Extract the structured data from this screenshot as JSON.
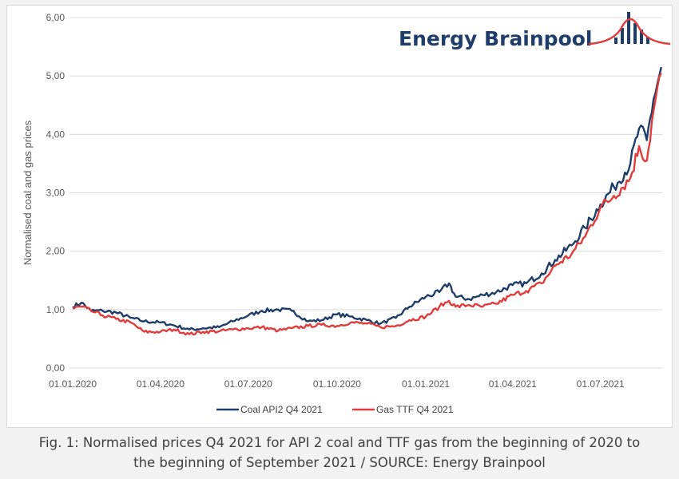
{
  "logo": {
    "text": "Energy Brainpool"
  },
  "caption": {
    "line1": "Fig. 1: Normalised prices Q4 2021 for API 2 coal and TTF gas from the beginning of 2020 to",
    "line2": "the beginning of September 2021 / SOURCE: Energy Brainpool"
  },
  "chart_data": {
    "type": "line",
    "title": "",
    "xlabel": "",
    "ylabel": "Normalised coal and gas prices",
    "ylim": [
      0,
      6
    ],
    "yticks": [
      "0,00",
      "1,00",
      "2,00",
      "3,00",
      "4,00",
      "5,00",
      "6,00"
    ],
    "xlim": [
      "2020-01-01",
      "2021-09-02"
    ],
    "xticks": [
      "01.01.2020",
      "01.04.2020",
      "01.07.2020",
      "01.10.2020",
      "01.01.2021",
      "01.04.2021",
      "01.07.2021"
    ],
    "grid": "horizontal",
    "legend_position": "bottom",
    "colors": {
      "coal": "#1f3d6b",
      "gas": "#e03c3c",
      "grid": "#d9d9d9"
    },
    "series": [
      {
        "name": "Coal API2 Q4 2021",
        "color": "#1f3d6b",
        "points": [
          [
            "2020-01-01",
            1.05
          ],
          [
            "2020-01-10",
            1.12
          ],
          [
            "2020-01-20",
            0.98
          ],
          [
            "2020-02-01",
            0.98
          ],
          [
            "2020-02-15",
            0.95
          ],
          [
            "2020-03-01",
            0.86
          ],
          [
            "2020-03-15",
            0.8
          ],
          [
            "2020-04-01",
            0.78
          ],
          [
            "2020-04-15",
            0.73
          ],
          [
            "2020-05-01",
            0.66
          ],
          [
            "2020-05-15",
            0.68
          ],
          [
            "2020-06-01",
            0.7
          ],
          [
            "2020-06-15",
            0.8
          ],
          [
            "2020-07-01",
            0.9
          ],
          [
            "2020-07-15",
            0.98
          ],
          [
            "2020-08-01",
            1.0
          ],
          [
            "2020-08-15",
            0.98
          ],
          [
            "2020-09-01",
            0.8
          ],
          [
            "2020-09-15",
            0.82
          ],
          [
            "2020-10-01",
            0.92
          ],
          [
            "2020-10-15",
            0.88
          ],
          [
            "2020-11-01",
            0.82
          ],
          [
            "2020-11-15",
            0.76
          ],
          [
            "2020-12-01",
            0.86
          ],
          [
            "2020-12-15",
            1.05
          ],
          [
            "2021-01-01",
            1.22
          ],
          [
            "2021-01-15",
            1.3
          ],
          [
            "2021-01-25",
            1.45
          ],
          [
            "2021-02-01",
            1.22
          ],
          [
            "2021-02-15",
            1.18
          ],
          [
            "2021-03-01",
            1.25
          ],
          [
            "2021-03-15",
            1.3
          ],
          [
            "2021-04-01",
            1.42
          ],
          [
            "2021-04-15",
            1.45
          ],
          [
            "2021-05-01",
            1.62
          ],
          [
            "2021-05-15",
            1.85
          ],
          [
            "2021-06-01",
            2.1
          ],
          [
            "2021-06-15",
            2.4
          ],
          [
            "2021-07-01",
            2.8
          ],
          [
            "2021-07-15",
            3.1
          ],
          [
            "2021-08-01",
            3.5
          ],
          [
            "2021-08-10",
            4.1
          ],
          [
            "2021-08-18",
            3.9
          ],
          [
            "2021-08-25",
            4.6
          ],
          [
            "2021-09-02",
            5.15
          ]
        ]
      },
      {
        "name": "Gas TTF Q4 2021",
        "color": "#e03c3c",
        "points": [
          [
            "2020-01-01",
            1.02
          ],
          [
            "2020-01-10",
            1.05
          ],
          [
            "2020-01-20",
            0.98
          ],
          [
            "2020-02-01",
            0.9
          ],
          [
            "2020-02-15",
            0.84
          ],
          [
            "2020-03-01",
            0.78
          ],
          [
            "2020-03-15",
            0.62
          ],
          [
            "2020-04-01",
            0.62
          ],
          [
            "2020-04-15",
            0.66
          ],
          [
            "2020-05-01",
            0.58
          ],
          [
            "2020-05-15",
            0.62
          ],
          [
            "2020-06-01",
            0.63
          ],
          [
            "2020-06-15",
            0.66
          ],
          [
            "2020-07-01",
            0.68
          ],
          [
            "2020-07-15",
            0.7
          ],
          [
            "2020-08-01",
            0.64
          ],
          [
            "2020-08-15",
            0.68
          ],
          [
            "2020-09-01",
            0.72
          ],
          [
            "2020-09-15",
            0.74
          ],
          [
            "2020-10-01",
            0.72
          ],
          [
            "2020-10-15",
            0.78
          ],
          [
            "2020-11-01",
            0.76
          ],
          [
            "2020-11-15",
            0.7
          ],
          [
            "2020-12-01",
            0.72
          ],
          [
            "2020-12-15",
            0.82
          ],
          [
            "2021-01-01",
            0.88
          ],
          [
            "2021-01-15",
            1.05
          ],
          [
            "2021-01-25",
            1.15
          ],
          [
            "2021-02-01",
            1.05
          ],
          [
            "2021-02-15",
            1.08
          ],
          [
            "2021-03-01",
            1.05
          ],
          [
            "2021-03-15",
            1.1
          ],
          [
            "2021-04-01",
            1.25
          ],
          [
            "2021-04-15",
            1.32
          ],
          [
            "2021-05-01",
            1.45
          ],
          [
            "2021-05-15",
            1.75
          ],
          [
            "2021-06-01",
            1.95
          ],
          [
            "2021-06-15",
            2.25
          ],
          [
            "2021-07-01",
            2.75
          ],
          [
            "2021-07-15",
            2.95
          ],
          [
            "2021-08-01",
            3.25
          ],
          [
            "2021-08-10",
            3.8
          ],
          [
            "2021-08-18",
            3.55
          ],
          [
            "2021-08-25",
            4.4
          ],
          [
            "2021-09-02",
            5.05
          ]
        ]
      }
    ]
  }
}
